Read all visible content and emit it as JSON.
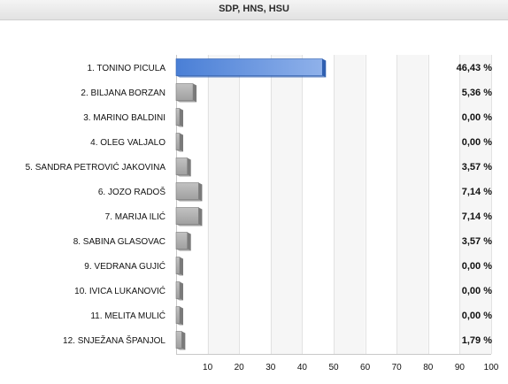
{
  "header": {
    "title": "SDP, HNS, HSU"
  },
  "chart_data": {
    "type": "bar",
    "orientation": "horizontal",
    "title": "SDP, HNS, HSU",
    "categories": [
      "1. TONINO PICULA",
      "2. BILJANA BORZAN",
      "3. MARINO BALDINI",
      "4. OLEG VALJALO",
      "5. SANDRA PETROVIĆ JAKOVINA",
      "6. JOZO RADOŠ",
      "7. MARIJA ILIĆ",
      "8. SABINA GLASOVAC",
      "9. VEDRANA GUJIĆ",
      "10. IVICA LUKANOVIĆ",
      "11. MELITA MULIĆ",
      "12. SNJEŽANA ŠPANJOL"
    ],
    "values": [
      46.43,
      5.36,
      0.0,
      0.0,
      3.57,
      7.14,
      7.14,
      3.57,
      0.0,
      0.0,
      0.0,
      1.79
    ],
    "value_labels": [
      "46,43 %",
      "5,36 %",
      "0,00 %",
      "0,00 %",
      "3,57 %",
      "7,14 %",
      "7,14 %",
      "3,57 %",
      "0,00 %",
      "0,00 %",
      "0,00 %",
      "1,79 %"
    ],
    "xlim": [
      0,
      100
    ],
    "x_ticks": [
      "10",
      "20",
      "30",
      "40",
      "50",
      "60",
      "70",
      "80",
      "90",
      "100"
    ],
    "grid": true,
    "colors": {
      "highlight_bar": "#4a7fd6",
      "highlight_bar_light": "#8fb1ea",
      "bar": "#a0a0a0",
      "bar_light": "#c2c2c2",
      "band": "#f6f6f6",
      "grid": "#e2e2e2"
    }
  }
}
